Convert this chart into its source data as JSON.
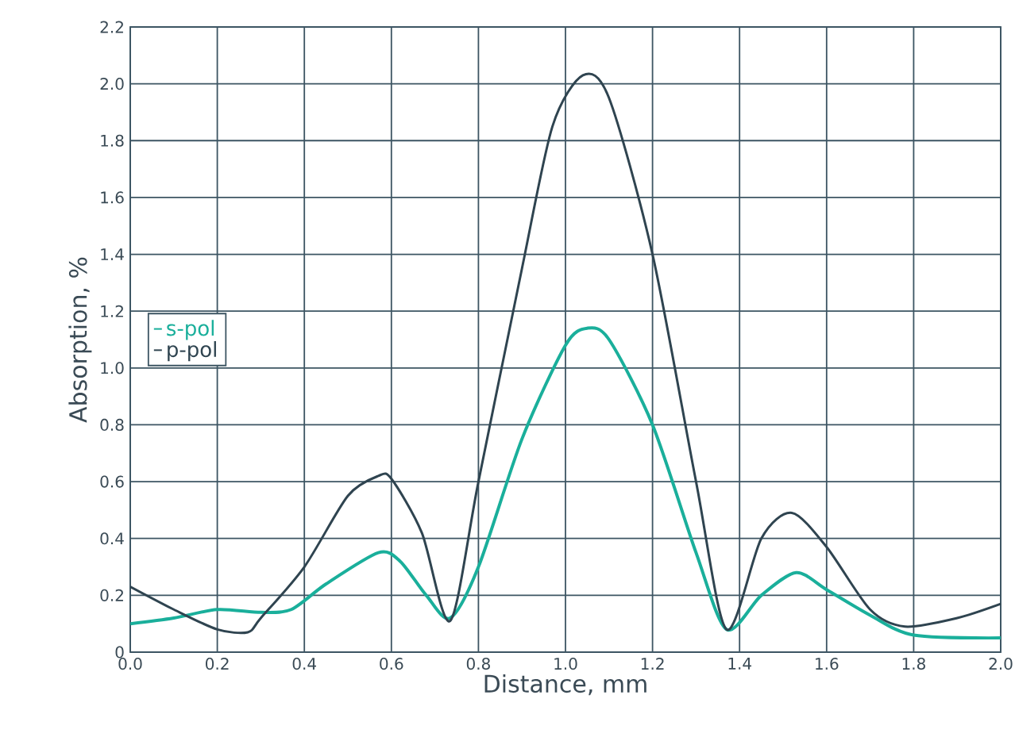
{
  "chart_data": {
    "type": "line",
    "xlabel": "Distance, mm",
    "ylabel": "Absorption, %",
    "xlim": [
      0,
      2.0
    ],
    "ylim": [
      0,
      2.2
    ],
    "xticks": [
      {
        "value": 0,
        "label": "0.0"
      },
      0.2,
      0.4,
      0.6,
      0.8,
      {
        "value": 1,
        "label": "1.0"
      },
      1.2,
      1.4,
      1.6,
      1.8,
      {
        "value": 2,
        "label": "2.0"
      }
    ],
    "yticks": [
      0,
      0.2,
      0.4,
      0.6,
      0.8,
      {
        "value": 1,
        "label": "1.0"
      },
      1.2,
      1.4,
      1.6,
      1.8,
      {
        "value": 2,
        "label": "2.0"
      },
      2.2
    ],
    "grid": true,
    "legend": "left",
    "marker": "none",
    "line_style": "solid",
    "series": [
      {
        "name": "s-pol",
        "color": "#1aaf9b",
        "x": [
          0,
          0.1,
          0.2,
          0.3,
          0.37,
          0.45,
          0.57,
          0.62,
          0.68,
          0.735,
          0.8,
          0.9,
          1.0,
          1.05,
          1.1,
          1.2,
          1.3,
          1.37,
          1.45,
          1.53,
          1.6,
          1.7,
          1.8,
          2.0
        ],
        "values": [
          0.1,
          0.12,
          0.15,
          0.14,
          0.15,
          0.24,
          0.35,
          0.32,
          0.2,
          0.12,
          0.3,
          0.75,
          1.08,
          1.14,
          1.1,
          0.8,
          0.35,
          0.08,
          0.2,
          0.28,
          0.22,
          0.13,
          0.06,
          0.05
        ]
      },
      {
        "name": "p-pol",
        "color": "#2f4450",
        "x": [
          0,
          0.1,
          0.2,
          0.27,
          0.3,
          0.4,
          0.5,
          0.57,
          0.6,
          0.67,
          0.735,
          0.8,
          0.9,
          0.97,
          1.04,
          1.1,
          1.2,
          1.3,
          1.37,
          1.45,
          1.52,
          1.6,
          1.7,
          1.78,
          1.9,
          2.0
        ],
        "values": [
          0.23,
          0.15,
          0.08,
          0.07,
          0.12,
          0.3,
          0.55,
          0.62,
          0.61,
          0.42,
          0.11,
          0.6,
          1.35,
          1.85,
          2.03,
          1.95,
          1.4,
          0.6,
          0.08,
          0.4,
          0.49,
          0.37,
          0.15,
          0.09,
          0.12,
          0.17
        ]
      }
    ]
  }
}
